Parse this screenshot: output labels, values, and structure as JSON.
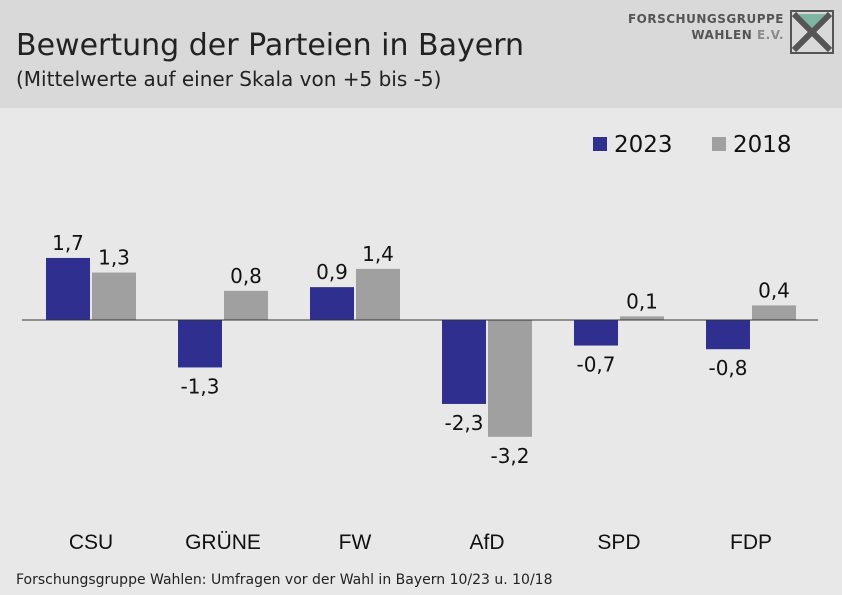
{
  "header": {
    "title": "Bewertung der Parteien in Bayern",
    "subtitle": "(Mittelwerte auf einer Skala von +5 bis -5)"
  },
  "logo": {
    "line1": "FORSCHUNGSGRUPPE",
    "line2_main": "WAHLEN",
    "line2_accent": "E.V."
  },
  "footer": {
    "source": "Forschungsgruppe Wahlen: Umfragen vor der Wahl in Bayern 10/23 u. 10/18"
  },
  "chart_data": {
    "type": "bar",
    "categories": [
      "CSU",
      "GRÜNE",
      "FW",
      "AfD",
      "SPD",
      "FDP"
    ],
    "series": [
      {
        "name": "2023",
        "color": "#2e2f8f",
        "values": [
          1.7,
          -1.3,
          0.9,
          -2.3,
          -0.7,
          -0.8
        ],
        "labels": [
          "1,7",
          "-1,3",
          "0,9",
          "-2,3",
          "-0,7",
          "-0,8"
        ]
      },
      {
        "name": "2018",
        "color": "#a0a0a0",
        "values": [
          1.3,
          0.8,
          1.4,
          -3.2,
          0.1,
          0.4
        ],
        "labels": [
          "1,3",
          "0,8",
          "1,4",
          "-3,2",
          "0,1",
          "0,4"
        ]
      }
    ],
    "legend_position": "top-right",
    "grid": false
  }
}
